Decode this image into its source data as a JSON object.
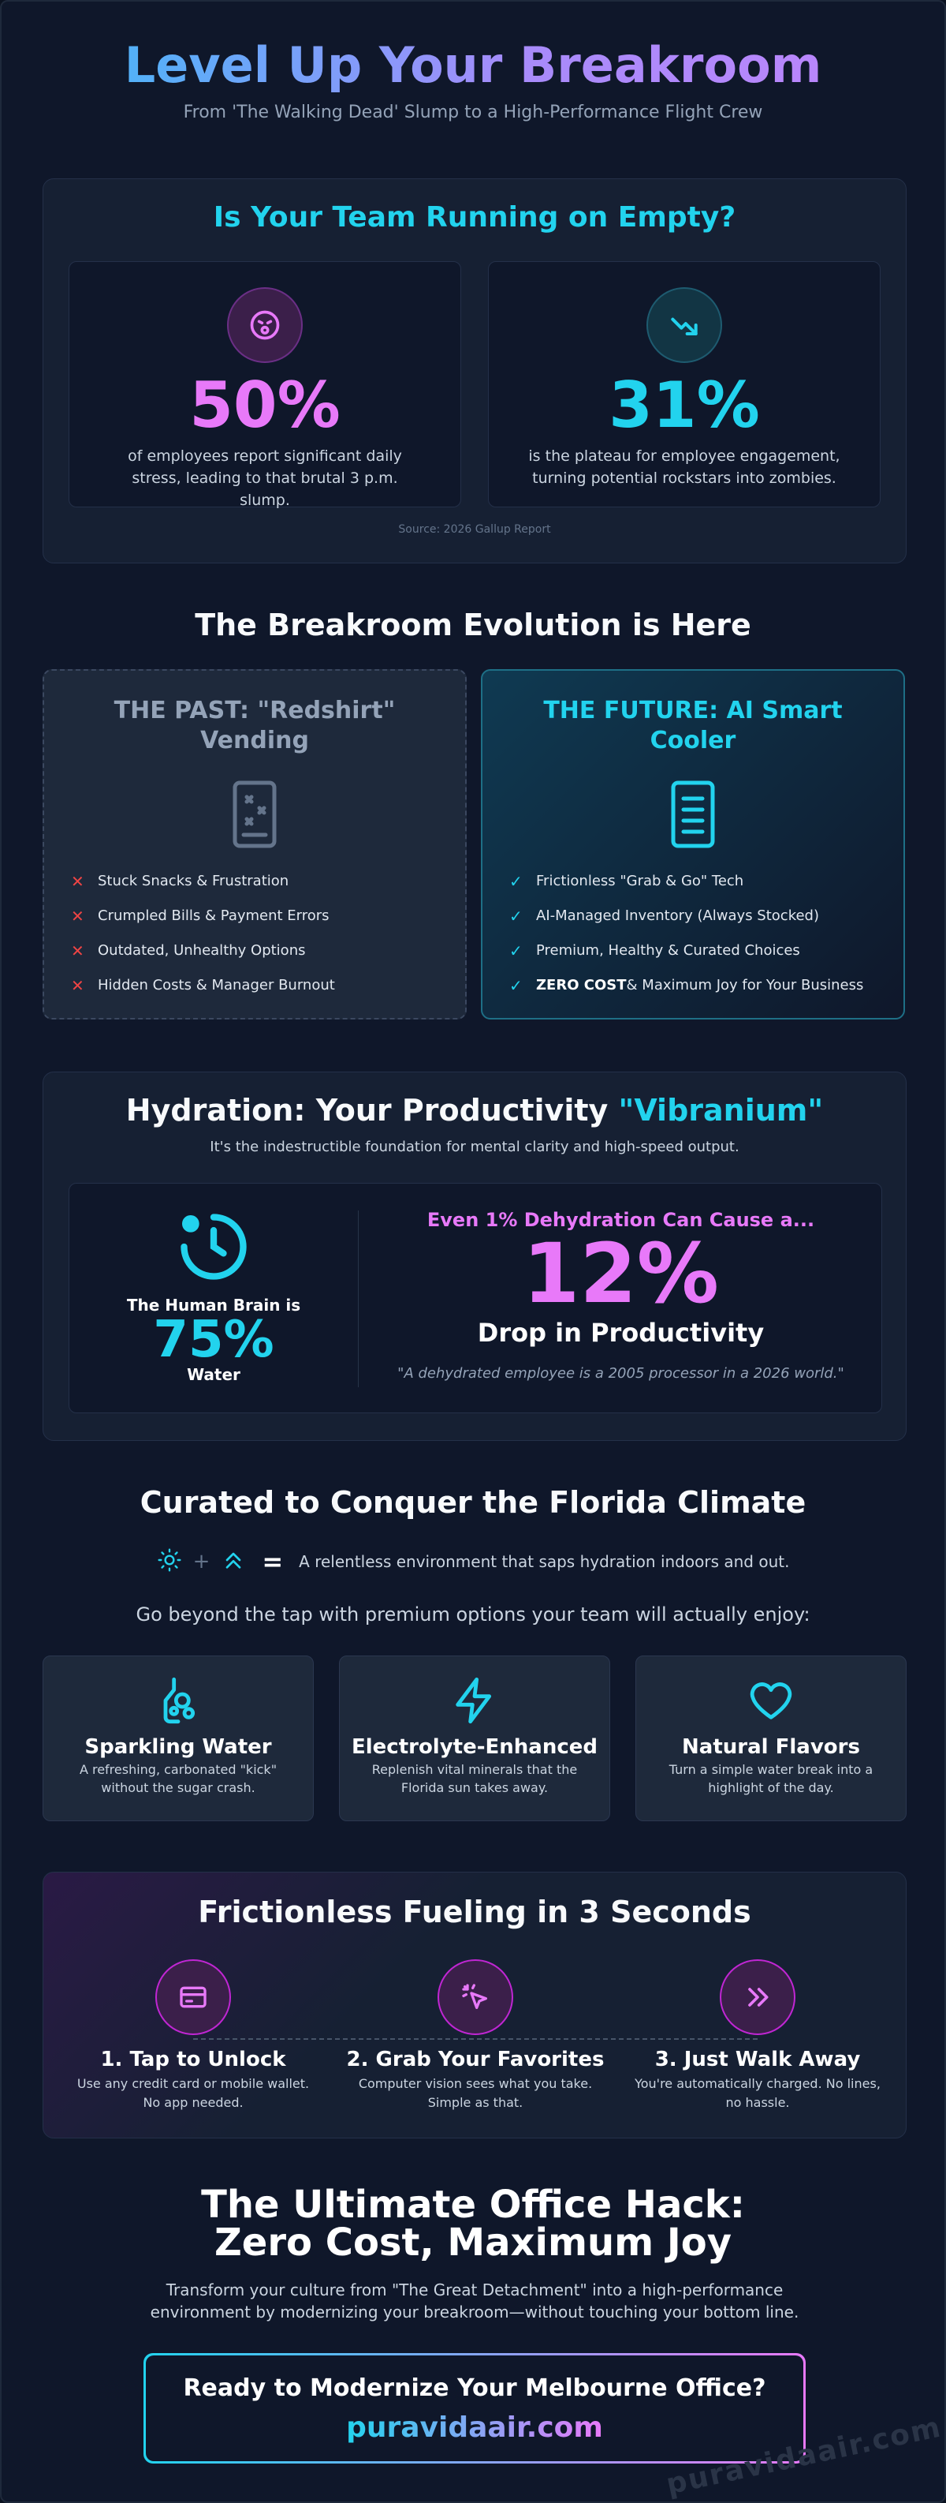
{
  "hero": {
    "title": "Level Up Your Breakroom",
    "subtitle": "From 'The Walking Dead' Slump to a High-Performance Flight Crew"
  },
  "empty": {
    "title": "Is Your Team Running on Empty?",
    "stats": [
      {
        "icon": "tired-face-icon",
        "value": "50%",
        "text": "of employees report significant daily stress, leading to that brutal 3 p.m. slump."
      },
      {
        "icon": "trend-down-icon",
        "value": "31%",
        "text": "is the plateau for employee engagement, turning potential rockstars into zombies."
      }
    ],
    "source": "Source: 2026 Gallup Report"
  },
  "evolution": {
    "title": "The Breakroom Evolution is Here",
    "past": {
      "title": "THE PAST: \"Redshirt\" Vending",
      "icon": "vending-machine-icon",
      "items": [
        "Stuck Snacks & Frustration",
        "Crumpled Bills & Payment Errors",
        "Outdated, Unhealthy Options",
        "Hidden Costs & Manager Burnout"
      ]
    },
    "future": {
      "title": "THE FUTURE: AI Smart Cooler",
      "icon": "smart-cooler-icon",
      "items": [
        "Frictionless \"Grab & Go\" Tech",
        "AI-Managed Inventory (Always Stocked)",
        "Premium, Healthy & Curated Choices"
      ],
      "last_bold": "ZERO COST",
      "last_rest": "& Maximum Joy for Your Business"
    }
  },
  "hydration": {
    "title_main": "Hydration: Your Productivity ",
    "title_accent": "\"Vibranium\"",
    "subtitle": "It's the indestructible foundation for mental clarity and high-speed output.",
    "brain_label": "The Human Brain is",
    "brain_value": "75%",
    "brain_suffix": "Water",
    "caution": "Even 1% Dehydration Can Cause a...",
    "drop_value": "12%",
    "drop_label": "Drop in Productivity",
    "quote": "\"A dehydrated employee is a 2005 processor in a 2026 world.\""
  },
  "climate": {
    "title": "Curated to Conquer the Florida Climate",
    "equation_text": "A relentless environment that saps hydration indoors and out.",
    "plus": "+",
    "equals": "=",
    "subtitle": "Go beyond the tap with premium options your team will actually enjoy:",
    "options": [
      {
        "icon": "sparkling-water-icon",
        "title": "Sparkling Water",
        "desc": "A refreshing, carbonated \"kick\" without the sugar crash."
      },
      {
        "icon": "lightning-bolt-icon",
        "title": "Electrolyte-Enhanced",
        "desc": "Replenish vital minerals that the Florida sun takes away."
      },
      {
        "icon": "heart-icon",
        "title": "Natural Flavors",
        "desc": "Turn a simple water break into a highlight of the day."
      }
    ]
  },
  "fueling": {
    "title": "Frictionless Fueling in 3 Seconds",
    "steps": [
      {
        "icon": "credit-card-icon",
        "title": "1. Tap to Unlock",
        "desc": "Use any credit card or mobile wallet. No app needed."
      },
      {
        "icon": "cursor-click-icon",
        "title": "2. Grab Your Favorites",
        "desc": "Computer vision sees what you take. Simple as that."
      },
      {
        "icon": "double-chevron-right-icon",
        "title": "3. Just Walk Away",
        "desc": "You're automatically charged. No lines, no hassle."
      }
    ]
  },
  "closing": {
    "title_line1": "The Ultimate Office Hack:",
    "title_line2": "Zero Cost, Maximum Joy",
    "subtitle": "Transform your culture from \"The Great Detachment\" into a high-performance environment by modernizing your breakroom—without touching your bottom line.",
    "cta_question": "Ready to Modernize Your Melbourne Office?",
    "cta_link": "puravidaair.com",
    "watermark": "puravidaair.com"
  },
  "colors": {
    "cyan": "#22d3ee",
    "magenta": "#e879f9",
    "background": "#0f172a",
    "panel": "#162033"
  }
}
